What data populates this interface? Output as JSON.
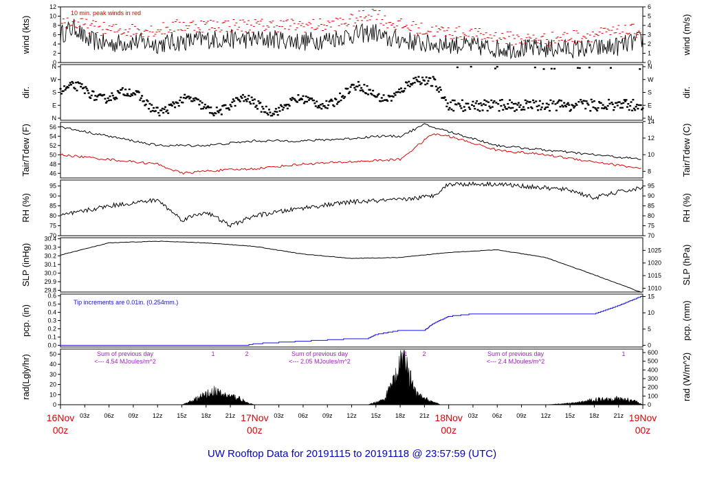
{
  "title": "UW Rooftop Data for 20191115  to  20191118 @ 23:57:59  (UTC)",
  "colors": {
    "black": "#000000",
    "red": "#e00000",
    "blue": "#1010e0",
    "purple": "#a020c0",
    "title": "#0000c8"
  },
  "x_axis": {
    "hour_ticks": [
      "03z",
      "06z",
      "09z",
      "12z",
      "15z",
      "18z",
      "21z",
      "03z",
      "06z",
      "09z",
      "12z",
      "15z",
      "18z",
      "21z",
      "03z",
      "06z",
      "09z",
      "12z",
      "15z",
      "18z",
      "21z"
    ],
    "day_labels": [
      {
        "day": "16Nov",
        "hour": "00z"
      },
      {
        "day": "17Nov",
        "hour": "00z"
      },
      {
        "day": "18Nov",
        "hour": "00z"
      },
      {
        "day": "19Nov",
        "hour": "00z"
      }
    ]
  },
  "panels": [
    {
      "id": "wind",
      "ylabel_left": "wind (kts)",
      "ylabel_right": "wind (m/s)",
      "left_ticks": [
        "0",
        "2",
        "4",
        "6",
        "8",
        "10",
        "12"
      ],
      "right_ticks": [
        "0",
        "1",
        "2",
        "3",
        "4",
        "5",
        "6"
      ],
      "annotation": "10 min. peak winds in red"
    },
    {
      "id": "dir",
      "ylabel_left": "dir.",
      "ylabel_right": "dir.",
      "left_ticks": [
        "N",
        "E",
        "S",
        "W",
        "N"
      ],
      "right_ticks": [
        "N",
        "E",
        "S",
        "W",
        "N"
      ]
    },
    {
      "id": "temp",
      "ylabel_left": "Tair/Tdew (F)",
      "ylabel_right": "Tair/Tdew (C)",
      "left_ticks": [
        "46",
        "48",
        "50",
        "52",
        "54",
        "56"
      ],
      "right_ticks": [
        "8",
        "10",
        "12",
        "14"
      ]
    },
    {
      "id": "rh",
      "ylabel_left": "RH (%)",
      "ylabel_right": "RH (%)",
      "left_ticks": [
        "70",
        "75",
        "80",
        "85",
        "90",
        "95"
      ],
      "right_ticks": [
        "70",
        "75",
        "80",
        "85",
        "90",
        "95"
      ]
    },
    {
      "id": "slp",
      "ylabel_left": "SLP (inHg)",
      "ylabel_right": "SLP (hPa)",
      "left_ticks": [
        "29.8",
        "29.9",
        "30.0",
        "30.1",
        "30.2",
        "30.3",
        "30.4"
      ],
      "right_ticks": [
        "1010",
        "1015",
        "1020",
        "1025"
      ]
    },
    {
      "id": "pcp",
      "ylabel_left": "pcp. (in)",
      "ylabel_right": "pcp. (mm)",
      "left_ticks": [
        "0.0",
        "0.1",
        "0.2",
        "0.3",
        "0.4",
        "0.5",
        "0.6"
      ],
      "right_ticks": [
        "0",
        "5",
        "10",
        "15"
      ],
      "annotation": "Tip increments are 0.01in. (0.254mm.)"
    },
    {
      "id": "rad",
      "ylabel_left": "rad(Lgly/hr)",
      "ylabel_right": "rad (W/m^2)",
      "left_ticks": [
        "0",
        "10",
        "20",
        "30",
        "40",
        "50"
      ],
      "right_ticks": [
        "0",
        "100",
        "200",
        "300",
        "400",
        "500",
        "600"
      ],
      "annotations": [
        {
          "line1": "Sum of previous day",
          "line2": "<--- 4.54 MJoules/m^2"
        },
        {
          "line1": "Sum of previous day",
          "line2": "<--- 2.05 MJoules/m^2"
        },
        {
          "line1": "Sum of previous day",
          "line2": "<--- 2.4 MJoules/m^2"
        }
      ],
      "markers": [
        "1",
        "2",
        "1",
        "2",
        "1"
      ]
    }
  ],
  "chart_data": {
    "type": "line",
    "x_unit": "hours since 16Nov 00z",
    "x_range": [
      0,
      72
    ],
    "series": [
      {
        "name": "wind",
        "panel": "wind",
        "unit": "kts",
        "x": [
          0,
          1,
          2,
          3,
          6,
          9,
          12,
          15,
          18,
          21,
          24,
          27,
          30,
          33,
          36,
          39,
          40,
          42,
          45,
          48,
          51,
          54,
          57,
          60,
          63,
          66,
          69,
          72
        ],
        "y": [
          6,
          7,
          7.5,
          5,
          4,
          4.5,
          4,
          4.5,
          5,
          5,
          5,
          5,
          4.5,
          5,
          6,
          6.5,
          5,
          5,
          4,
          4,
          3.5,
          3,
          3,
          3,
          3,
          3,
          3.5,
          5
        ]
      },
      {
        "name": "10 min. peak winds",
        "panel": "wind",
        "unit": "kts",
        "color": "red",
        "x": [
          0,
          3,
          6,
          9,
          12,
          15,
          18,
          21,
          24,
          27,
          30,
          33,
          36,
          39,
          40,
          42,
          45,
          48,
          51,
          54,
          57,
          60,
          63,
          66,
          69,
          72
        ],
        "y": [
          9,
          8,
          7,
          7,
          7,
          8,
          8,
          8,
          8,
          8,
          8,
          8,
          9,
          11,
          9,
          8,
          7,
          6.5,
          6,
          5.5,
          5,
          5,
          5.5,
          6,
          6.5,
          7
        ]
      },
      {
        "name": "direction",
        "panel": "dir",
        "unit": "compass",
        "x": [
          0,
          6,
          12,
          18,
          24,
          30,
          36,
          42,
          46,
          48,
          54,
          60,
          66,
          72
        ],
        "y": [
          "S",
          "S",
          "E",
          "E",
          "E",
          "E",
          "S",
          "S",
          "W",
          "E",
          "E",
          "E",
          "E",
          "E"
        ]
      },
      {
        "name": "Tair",
        "panel": "temp",
        "unit": "F",
        "x": [
          0,
          6,
          12,
          18,
          24,
          30,
          36,
          39,
          42,
          45,
          48,
          54,
          60,
          66,
          72
        ],
        "y": [
          56,
          54,
          52,
          52,
          53,
          53,
          53.5,
          54,
          54,
          56.5,
          55,
          52,
          51,
          50,
          49
        ]
      },
      {
        "name": "Tdew",
        "panel": "temp",
        "unit": "F",
        "color": "red",
        "x": [
          0,
          6,
          12,
          15,
          18,
          24,
          30,
          36,
          42,
          46,
          48,
          54,
          60,
          66,
          72
        ],
        "y": [
          50,
          49,
          48,
          46,
          46.5,
          47,
          48,
          48.5,
          49,
          54.5,
          54,
          51,
          50,
          48.5,
          47
        ]
      },
      {
        "name": "RH",
        "panel": "rh",
        "unit": "%",
        "x": [
          0,
          6,
          12,
          15,
          18,
          21,
          24,
          30,
          36,
          42,
          46,
          48,
          54,
          60,
          63,
          66,
          69,
          72
        ],
        "y": [
          80,
          85,
          88,
          78,
          82,
          75,
          80,
          84,
          87,
          88,
          90,
          96,
          96,
          94,
          93,
          89,
          92,
          94
        ]
      },
      {
        "name": "SLP",
        "panel": "slp",
        "unit": "inHg",
        "x": [
          0,
          6,
          12,
          18,
          24,
          30,
          36,
          42,
          48,
          54,
          60,
          66,
          72
        ],
        "y": [
          30.21,
          30.35,
          30.37,
          30.35,
          30.31,
          30.22,
          30.17,
          30.18,
          30.24,
          30.27,
          30.18,
          29.98,
          29.77
        ]
      },
      {
        "name": "pcp",
        "panel": "pcp",
        "unit": "in",
        "color": "blue",
        "x": [
          0,
          23,
          24,
          36,
          38,
          39,
          42,
          45,
          46,
          48,
          51,
          60,
          66,
          69,
          72
        ],
        "y": [
          0,
          0,
          0.02,
          0.08,
          0.08,
          0.13,
          0.18,
          0.18,
          0.26,
          0.35,
          0.38,
          0.38,
          0.38,
          0.48,
          0.6
        ]
      },
      {
        "name": "rad",
        "panel": "rad",
        "unit": "Lgly/hr",
        "x": [
          0,
          15,
          16,
          18,
          19,
          20,
          21,
          22,
          23,
          24,
          38,
          40,
          41,
          42,
          42.5,
          43,
          44,
          45,
          46,
          47,
          60,
          64,
          66,
          68,
          69,
          70,
          71,
          72
        ],
        "y": [
          0,
          0,
          3,
          10,
          13,
          10,
          8,
          7,
          2,
          0,
          0,
          5,
          20,
          35,
          58,
          30,
          10,
          6,
          3,
          0,
          0,
          2,
          5,
          6,
          6,
          5,
          4,
          0
        ]
      }
    ]
  }
}
